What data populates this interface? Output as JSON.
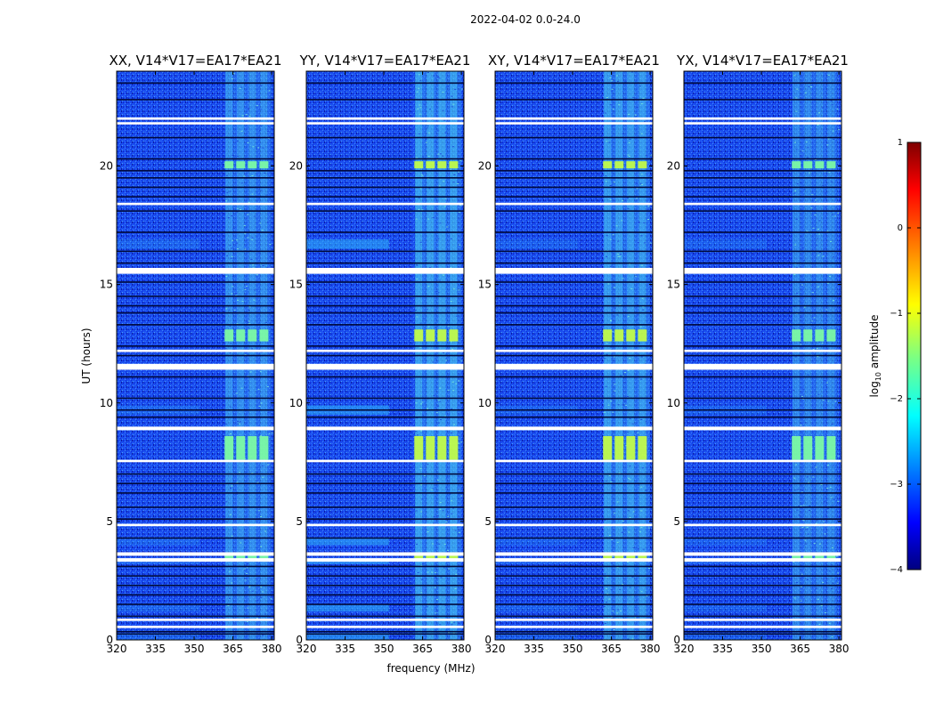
{
  "chart_data": {
    "type": "heatmap",
    "suptitle": "2022-04-02 0.0-24.0",
    "xlabel": "frequency (MHz)",
    "ylabel": "UT (hours)",
    "xlim": [
      320,
      381
    ],
    "ylim": [
      0,
      24
    ],
    "xticks": [
      320,
      335,
      350,
      365,
      380
    ],
    "yticks": [
      0,
      5,
      10,
      15,
      20
    ],
    "panels": [
      {
        "title": "XX, V14*V17=EA17*EA21",
        "rfi_strength": 0.55,
        "lowband_strength": 0.25
      },
      {
        "title": "YY, V14*V17=EA17*EA21",
        "rfi_strength": 0.75,
        "lowband_strength": 0.55
      },
      {
        "title": "XY, V14*V17=EA17*EA21",
        "rfi_strength": 0.7,
        "lowband_strength": 0.2
      },
      {
        "title": "YX, V14*V17=EA17*EA21",
        "rfi_strength": 0.45,
        "lowband_strength": 0.2
      }
    ],
    "rfi_band_mhz": [
      362,
      380
    ],
    "rfi_channels_mhz": [
      363.5,
      368,
      372.5,
      377
    ],
    "bright_periods_ut": [
      [
        3.4,
        3.7
      ],
      [
        7.6,
        8.6
      ],
      [
        12.6,
        13.1
      ],
      [
        19.9,
        20.2
      ]
    ],
    "white_gaps_ut": [
      [
        0.5,
        0.6
      ],
      [
        0.8,
        0.9
      ],
      [
        3.3,
        3.45
      ],
      [
        3.55,
        3.7
      ],
      [
        4.8,
        4.9
      ],
      [
        7.5,
        7.6
      ],
      [
        8.85,
        9.0
      ],
      [
        11.4,
        11.65
      ],
      [
        12.15,
        12.25
      ],
      [
        15.45,
        15.7
      ],
      [
        18.35,
        18.45
      ],
      [
        21.75,
        21.85
      ],
      [
        21.95,
        22.05
      ]
    ],
    "dark_lines_ut": [
      0.25,
      0.35,
      1.0,
      1.5,
      1.9,
      2.3,
      2.7,
      3.1,
      4.3,
      5.1,
      5.6,
      6.2,
      6.6,
      7.0,
      9.4,
      9.7,
      10.2,
      11.1,
      12.0,
      12.4,
      13.3,
      13.8,
      14.1,
      14.5,
      15.1,
      15.9,
      16.4,
      17.2,
      18.1,
      18.7,
      19.1,
      19.5,
      19.8,
      20.3,
      21.2,
      22.8,
      23.5
    ],
    "colorbar": {
      "label_prefix": "log",
      "label_sub": "10",
      "label_suffix": " amplitude",
      "range": [
        -4,
        1
      ],
      "ticks": [
        1,
        0,
        -1,
        -2,
        -3,
        -4
      ],
      "colormap": "jet"
    }
  }
}
